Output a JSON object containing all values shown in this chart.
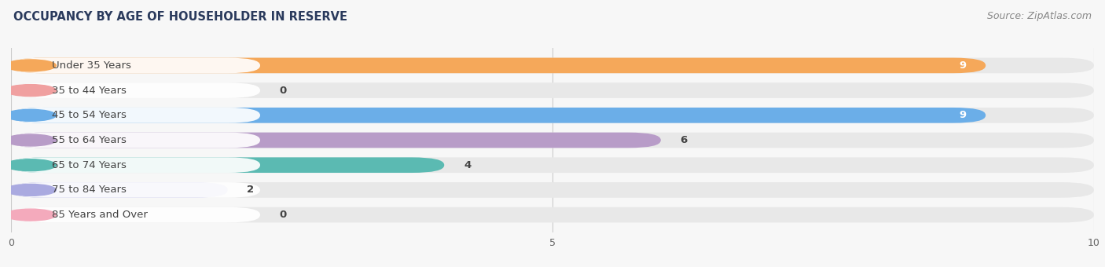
{
  "title": "OCCUPANCY BY AGE OF HOUSEHOLDER IN RESERVE",
  "source": "Source: ZipAtlas.com",
  "categories": [
    "Under 35 Years",
    "35 to 44 Years",
    "45 to 54 Years",
    "55 to 64 Years",
    "65 to 74 Years",
    "75 to 84 Years",
    "85 Years and Over"
  ],
  "values": [
    9,
    0,
    9,
    6,
    4,
    2,
    0
  ],
  "bar_colors": [
    "#F5A85A",
    "#F0A0A0",
    "#6BAEE8",
    "#B89CC8",
    "#5BBAB2",
    "#AAAAE0",
    "#F4AABC"
  ],
  "xlim": [
    0,
    10
  ],
  "xticks": [
    0,
    5,
    10
  ],
  "bar_height": 0.62,
  "background_color": "#f7f7f7",
  "bar_bg_color": "#e8e8e8",
  "label_fontsize": 9.5,
  "title_fontsize": 10.5,
  "value_fontsize": 9.5,
  "source_fontsize": 9
}
